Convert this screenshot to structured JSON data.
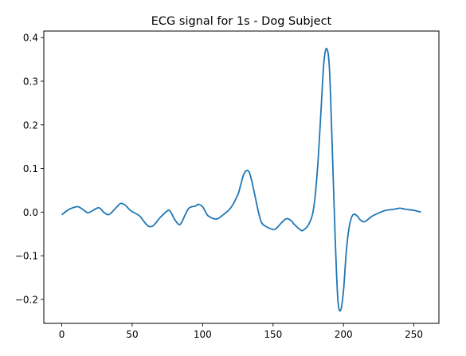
{
  "chart_data": {
    "type": "line",
    "title": "ECG signal for 1s - Dog Subject",
    "xlabel": "",
    "ylabel": "",
    "xlim": [
      -12.75,
      267.75
    ],
    "ylim": [
      -0.255,
      0.415
    ],
    "xticks": [
      0,
      50,
      100,
      150,
      200,
      250
    ],
    "yticks": [
      -0.2,
      -0.1,
      0.0,
      0.1,
      0.2,
      0.3,
      0.4
    ],
    "xtick_labels": [
      "0",
      "50",
      "100",
      "150",
      "200",
      "250"
    ],
    "ytick_labels": [
      "−0.2",
      "−0.1",
      "0.0",
      "0.1",
      "0.2",
      "0.3",
      "0.4"
    ],
    "grid": false,
    "series": [
      {
        "color": "#1f77b4",
        "x": [
          0,
          5,
          10,
          12,
          15,
          18,
          20,
          25,
          27,
          30,
          33,
          35,
          40,
          42,
          45,
          48,
          50,
          55,
          58,
          60,
          62,
          65,
          70,
          75,
          77,
          80,
          83,
          85,
          90,
          95,
          97,
          100,
          103,
          105,
          110,
          115,
          120,
          125,
          127,
          129,
          131,
          133,
          135,
          137,
          140,
          142,
          145,
          150,
          152,
          155,
          158,
          160,
          163,
          165,
          170,
          172,
          175,
          178,
          180,
          182,
          184,
          186,
          188,
          190,
          192,
          194,
          196,
          198,
          200,
          202,
          204,
          206,
          208,
          210,
          212,
          215,
          220,
          225,
          230,
          235,
          238,
          240,
          242,
          245,
          250,
          255
        ],
        "y": [
          -0.006,
          0.006,
          0.012,
          0.012,
          0.006,
          -0.001,
          0.0,
          0.009,
          0.009,
          -0.001,
          -0.006,
          -0.002,
          0.015,
          0.02,
          0.016,
          0.006,
          0.001,
          -0.008,
          -0.02,
          -0.028,
          -0.033,
          -0.031,
          -0.012,
          0.003,
          0.002,
          -0.016,
          -0.028,
          -0.024,
          0.008,
          0.014,
          0.018,
          0.012,
          -0.005,
          -0.011,
          -0.016,
          -0.005,
          0.01,
          0.04,
          0.062,
          0.085,
          0.095,
          0.092,
          0.07,
          0.04,
          -0.005,
          -0.025,
          -0.033,
          -0.04,
          -0.038,
          -0.028,
          -0.018,
          -0.015,
          -0.02,
          -0.028,
          -0.042,
          -0.04,
          -0.03,
          -0.005,
          0.04,
          0.12,
          0.23,
          0.34,
          0.375,
          0.33,
          0.15,
          -0.05,
          -0.2,
          -0.225,
          -0.18,
          -0.09,
          -0.035,
          -0.01,
          -0.005,
          -0.01,
          -0.018,
          -0.022,
          -0.01,
          -0.002,
          0.004,
          0.006,
          0.008,
          0.009,
          0.008,
          0.006,
          0.004,
          0.0
        ]
      }
    ]
  }
}
